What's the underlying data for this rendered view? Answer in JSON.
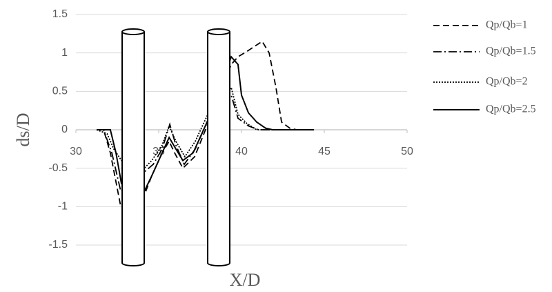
{
  "chart_data": {
    "type": "line",
    "x_label": "X/D",
    "y_label": "ds/D",
    "xlim": [
      30,
      50
    ],
    "xticks": [
      30,
      35,
      40,
      45,
      50
    ],
    "ylim": [
      -1.5,
      1.5
    ],
    "yticks": [
      -1.5,
      -1,
      -0.5,
      0,
      0.5,
      1,
      1.5
    ],
    "grid": true,
    "legend": "right",
    "series": [
      {
        "name": "Qp/Qb=1",
        "color": "#000000",
        "dash": "dashed",
        "x": [
          31.25,
          31.67,
          32.08,
          32.71,
          34.13,
          34.58,
          35.21,
          35.63,
          35.96,
          36.46,
          37.17,
          37.92,
          39.38,
          39.79,
          40.33,
          41.25,
          41.67,
          42.08,
          42.42,
          42.92,
          43.33
        ],
        "values": [
          0,
          0,
          -0.3,
          -1.0,
          -0.85,
          -0.6,
          -0.3,
          -0.15,
          -0.3,
          -0.5,
          -0.35,
          0.05,
          0.85,
          0.95,
          1.02,
          1.15,
          1.0,
          0.55,
          0.1,
          0.02,
          0
        ]
      },
      {
        "name": "Qp/Qb=1.5",
        "color": "#000000",
        "dash": "dashdot",
        "x": [
          31.25,
          31.67,
          32.17,
          32.71,
          34.13,
          34.67,
          35.21,
          35.67,
          36.04,
          36.54,
          37.21,
          37.92,
          39.38,
          39.79,
          40.42,
          41.04,
          43.33
        ],
        "values": [
          0,
          0,
          -0.3,
          -0.8,
          -0.55,
          -0.45,
          -0.25,
          0.07,
          -0.2,
          -0.45,
          -0.25,
          0.1,
          0.45,
          0.15,
          0.05,
          0,
          0
        ]
      },
      {
        "name": "Qp/Qb=2",
        "color": "#000000",
        "dash": "dotted",
        "x": [
          31.25,
          31.88,
          32.29,
          32.75,
          34.13,
          34.58,
          35.21,
          35.63,
          36.04,
          36.58,
          37.21,
          37.92,
          39.38,
          39.79,
          40.33,
          40.92,
          43.33
        ],
        "values": [
          0,
          -0.05,
          -0.25,
          -0.4,
          -0.5,
          -0.4,
          -0.2,
          0.05,
          -0.15,
          -0.35,
          -0.15,
          0.18,
          0.55,
          0.2,
          0.08,
          0,
          0
        ]
      },
      {
        "name": "Qp/Qb=2.5",
        "color": "#000000",
        "dash": "solid",
        "x": [
          31.25,
          32.08,
          32.42,
          32.75,
          34.13,
          34.58,
          35.21,
          35.63,
          36.04,
          36.46,
          37.08,
          37.92,
          39.38,
          39.79,
          40.0,
          40.42,
          40.92,
          41.46,
          41.88,
          44.38
        ],
        "values": [
          0,
          0,
          -0.3,
          -0.7,
          -0.8,
          -0.6,
          -0.3,
          -0.1,
          -0.25,
          -0.4,
          -0.3,
          0.1,
          0.95,
          0.85,
          0.45,
          0.22,
          0.1,
          0.02,
          0,
          0
        ]
      }
    ]
  }
}
